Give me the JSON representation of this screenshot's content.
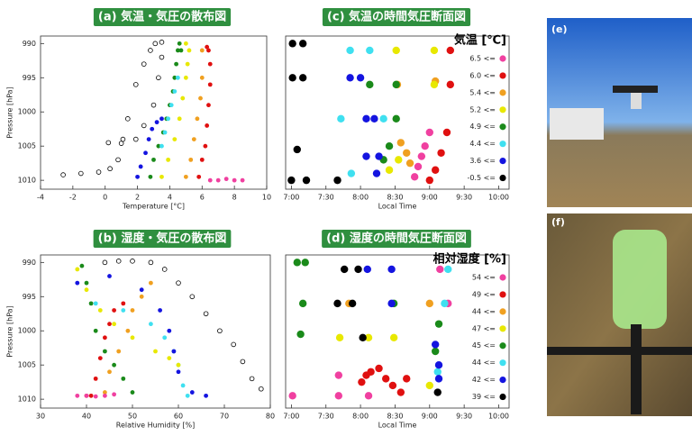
{
  "chart_data": [
    {
      "type": "scatter",
      "title": "(a) 気温・気圧の散布図",
      "x_label": "Temperature [°C]",
      "y_label": "Pressure [hPa]",
      "xlim": [
        -4,
        10
      ],
      "ylim": [
        1011.3,
        988.9
      ],
      "xticks": [
        -4,
        -2,
        0,
        2,
        4,
        6,
        8,
        10
      ],
      "yticks": [
        990,
        995,
        1000,
        1005,
        1010
      ],
      "series": [
        {
          "color": "#000000",
          "marker": "open",
          "x": [
            -2.6,
            -1.5,
            -0.4,
            0.3,
            0.8,
            1.1,
            1.4,
            1.9,
            2.4,
            2.8,
            3.1,
            3.5,
            3.5,
            3.3,
            3.0,
            2.4,
            1.9,
            1.0,
            0.2
          ],
          "y": [
            1009.2,
            1009,
            1008.8,
            1008.3,
            1007,
            1004,
            1001,
            996,
            993,
            991,
            990,
            989.8,
            992,
            995,
            999,
            1002,
            1004,
            1004.6,
            1004.5
          ]
        },
        {
          "color": "#1414e0",
          "x": [
            2.0,
            2.2,
            2.5,
            2.7,
            2.9,
            3.2,
            3.5
          ],
          "y": [
            1009.5,
            1008,
            1006,
            1004,
            1002.5,
            1001.5,
            1001
          ]
        },
        {
          "color": "#1a8a1a",
          "x": [
            2.8,
            3.0,
            3.3,
            3.6,
            3.8,
            4.0,
            4.2,
            4.3,
            4.4,
            4.5,
            4.6,
            4.7
          ],
          "y": [
            1009.5,
            1007,
            1005,
            1003,
            1001,
            999,
            997,
            995,
            993,
            991,
            990,
            991
          ]
        },
        {
          "color": "#3fe0f0",
          "x": [
            3.5,
            3.7,
            3.9,
            4.1,
            4.3,
            4.5
          ],
          "y": [
            1005,
            1003,
            1001,
            999,
            997,
            995
          ]
        },
        {
          "color": "#e8e800",
          "x": [
            3.5,
            3.9,
            4.3,
            4.6,
            4.8,
            5.0,
            5.1,
            5.2,
            5.0
          ],
          "y": [
            1009.5,
            1007,
            1004,
            1001,
            998,
            995,
            993,
            991,
            990
          ]
        },
        {
          "color": "#f0a020",
          "x": [
            5.0,
            5.3,
            5.5,
            5.7,
            5.9,
            6.0,
            6.0
          ],
          "y": [
            1009.5,
            1007,
            1004,
            1001,
            998,
            995,
            991
          ]
        },
        {
          "color": "#e01010",
          "x": [
            5.8,
            6.0,
            6.2,
            6.3,
            6.4,
            6.5,
            6.5,
            6.4,
            6.3
          ],
          "y": [
            1009.5,
            1007,
            1005,
            1002,
            999,
            996,
            993,
            991,
            990.5
          ]
        },
        {
          "color": "#f040a0",
          "x": [
            6.5,
            7.0,
            7.5,
            8.0,
            8.5
          ],
          "y": [
            1010,
            1010,
            1009.8,
            1010,
            1010
          ]
        }
      ]
    },
    {
      "type": "scatter",
      "title": "(b) 湿度・気圧の散布図",
      "x_label": "Relative Humidity [%]",
      "y_label": "Pressure [hPa]",
      "xlim": [
        30,
        80
      ],
      "ylim": [
        1011.3,
        988.9
      ],
      "xticks": [
        30,
        40,
        50,
        60,
        70,
        80
      ],
      "yticks": [
        990,
        995,
        1000,
        1005,
        1010
      ],
      "series": [
        {
          "color": "#000000",
          "marker": "open",
          "x": [
            44,
            47,
            50,
            54,
            57,
            60,
            63,
            66,
            69,
            72,
            74,
            76,
            78
          ],
          "y": [
            990,
            989.8,
            989.8,
            990,
            991,
            993,
            995,
            997.5,
            1000,
            1002,
            1004.5,
            1007,
            1008.5
          ]
        },
        {
          "color": "#1a8a1a",
          "x": [
            39,
            40,
            41,
            42,
            44,
            46,
            48,
            50
          ],
          "y": [
            990.5,
            993,
            996,
            1000,
            1003,
            1005,
            1007,
            1009
          ]
        },
        {
          "color": "#3fe0f0",
          "x": [
            42,
            48,
            54,
            57,
            59,
            60,
            61,
            62
          ],
          "y": [
            996,
            997,
            999,
            1001,
            1003,
            1005,
            1008,
            1009.5
          ]
        },
        {
          "color": "#1414e0",
          "x": [
            38,
            45,
            52,
            56,
            58,
            59,
            60,
            63,
            66
          ],
          "y": [
            993,
            992,
            994,
            997,
            1000,
            1003,
            1006,
            1009,
            1009.5
          ]
        },
        {
          "color": "#e8e800",
          "x": [
            38,
            40,
            43,
            46,
            50,
            55,
            58,
            60
          ],
          "y": [
            991,
            994,
            997,
            999,
            1001,
            1003,
            1004,
            1005
          ]
        },
        {
          "color": "#f0a020",
          "x": [
            44,
            45,
            47,
            49,
            50,
            52,
            54
          ],
          "y": [
            1009,
            1006,
            1003,
            1000,
            997,
            995,
            993
          ]
        },
        {
          "color": "#e01010",
          "x": [
            40,
            41,
            42,
            43,
            44,
            45,
            46,
            48
          ],
          "y": [
            1009.5,
            1009.5,
            1007,
            1004,
            1001,
            999,
            997,
            996
          ]
        },
        {
          "color": "#f040a0",
          "x": [
            38,
            40,
            42,
            44,
            46
          ],
          "y": [
            1009.5,
            1009.5,
            1009.6,
            1009.5,
            1009.3
          ]
        }
      ]
    },
    {
      "type": "scatter",
      "title": "(c) 気温の時間気圧断面図",
      "x_label": "Local Time",
      "legend_title": "気温 [℃]",
      "xlim": [
        415,
        609
      ],
      "ylim": [
        1011.3,
        988.9
      ],
      "xticks": [
        {
          "value": 420,
          "label": "7:00"
        },
        {
          "value": 450,
          "label": "7:30"
        },
        {
          "value": 480,
          "label": "8:00"
        },
        {
          "value": 510,
          "label": "8:30"
        },
        {
          "value": 540,
          "label": "9:00"
        },
        {
          "value": 570,
          "label": "9:30"
        },
        {
          "value": 600,
          "label": "10:00"
        }
      ],
      "series": [
        {
          "name": "6.5 <=",
          "color": "#f040a0",
          "x": [
            540,
            536,
            533,
            530,
            527
          ],
          "y": [
            1003,
            1005,
            1006.5,
            1008,
            1009.5
          ]
        },
        {
          "name": "6.0 <=",
          "color": "#e01010",
          "x": [
            558,
            558,
            555,
            550,
            545,
            540
          ],
          "y": [
            991,
            996,
            1003,
            1006,
            1008.5,
            1010
          ]
        },
        {
          "name": "5.4 <=",
          "color": "#f0a020",
          "x": [
            512,
            515,
            520,
            523,
            545
          ],
          "y": [
            996,
            1004.5,
            1006,
            1007.5,
            995.5
          ]
        },
        {
          "name": "5.2 <=",
          "color": "#e8e800",
          "x": [
            511,
            544,
            544,
            505,
            513
          ],
          "y": [
            991,
            991,
            996,
            1008.5,
            1007
          ]
        },
        {
          "name": "4.9 <=",
          "color": "#1a8a1a",
          "x": [
            488,
            511,
            511,
            505,
            500
          ],
          "y": [
            996,
            996,
            1001,
            1005,
            1007
          ]
        },
        {
          "name": "4.4 <=",
          "color": "#3fe0f0",
          "x": [
            471,
            488,
            463,
            472,
            500
          ],
          "y": [
            991,
            991,
            1001,
            1009,
            1001
          ]
        },
        {
          "name": "3.6 <=",
          "color": "#1414e0",
          "x": [
            471,
            480,
            485,
            492,
            485,
            496,
            494
          ],
          "y": [
            995,
            995,
            1001,
            1001,
            1006.5,
            1006.5,
            1009
          ]
        },
        {
          "name": "-0.5 <=",
          "color": "#000000",
          "x": [
            421,
            430,
            421,
            430,
            425,
            420,
            433,
            460
          ],
          "y": [
            990,
            990,
            995,
            995,
            1005.5,
            1010,
            1010,
            1010
          ]
        }
      ]
    },
    {
      "type": "scatter",
      "title": "(d) 湿度の時間気圧断面図",
      "x_label": "Local Time",
      "legend_title": "相対湿度 [%]",
      "xlim": [
        415,
        609
      ],
      "ylim": [
        1011.3,
        988.9
      ],
      "xticks": [
        {
          "value": 420,
          "label": "7:00"
        },
        {
          "value": 450,
          "label": "7:30"
        },
        {
          "value": 480,
          "label": "8:00"
        },
        {
          "value": 510,
          "label": "8:30"
        },
        {
          "value": 540,
          "label": "9:00"
        },
        {
          "value": 570,
          "label": "9:30"
        },
        {
          "value": 600,
          "label": "10:00"
        }
      ],
      "series": [
        {
          "name": "54 <=",
          "color": "#f040a0",
          "x": [
            421,
            461,
            461,
            487,
            549,
            556
          ],
          "y": [
            1009.5,
            1006.5,
            1009.5,
            1009.5,
            991,
            996
          ]
        },
        {
          "name": "49 <=",
          "color": "#e01010",
          "x": [
            481,
            485,
            489,
            496,
            502,
            508,
            515,
            520
          ],
          "y": [
            1007.5,
            1006.5,
            1006,
            1005.5,
            1007,
            1008,
            1009,
            1007
          ]
        },
        {
          "name": "44 <=",
          "color": "#f0a020",
          "x": [
            470,
            540
          ],
          "y": [
            996,
            996
          ]
        },
        {
          "name": "47 <=",
          "color": "#e8e800",
          "x": [
            462,
            487,
            509,
            540
          ],
          "y": [
            1001,
            1001,
            1001,
            1008
          ]
        },
        {
          "name": "45 <=",
          "color": "#1a8a1a",
          "x": [
            425,
            432,
            430,
            428,
            509,
            548,
            545
          ],
          "y": [
            990,
            990,
            996,
            1000.5,
            996,
            999,
            1003
          ]
        },
        {
          "name": "44 <=",
          "color": "#3fe0f0",
          "x": [
            556,
            553,
            547
          ],
          "y": [
            991,
            996,
            1006
          ]
        },
        {
          "name": "42 <=",
          "color": "#1414e0",
          "x": [
            486,
            507,
            507,
            545,
            548,
            548
          ],
          "y": [
            991,
            991,
            996,
            1002,
            1005,
            1007
          ]
        },
        {
          "name": "39 <=",
          "color": "#000000",
          "x": [
            466,
            478,
            460,
            473,
            482,
            547
          ],
          "y": [
            991,
            991,
            996,
            996,
            1001,
            1009
          ]
        }
      ]
    }
  ],
  "photos": [
    {
      "label": "(e)"
    },
    {
      "label": "(f)"
    }
  ]
}
